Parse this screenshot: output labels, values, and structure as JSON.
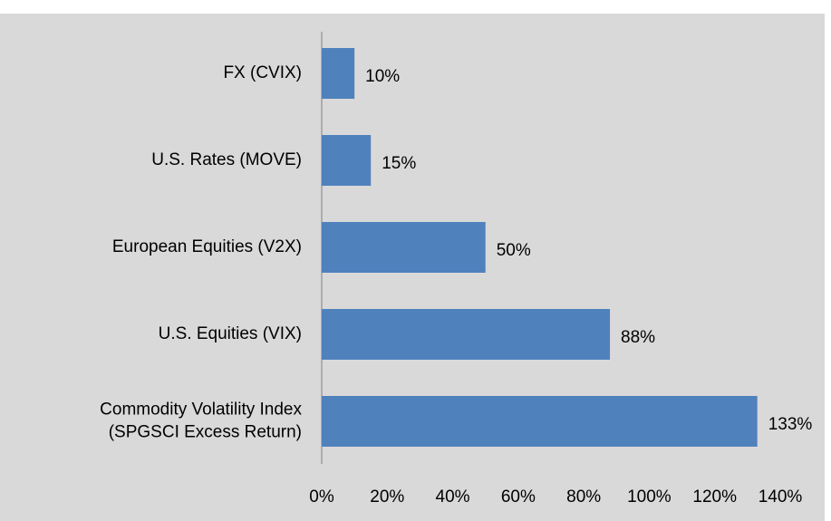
{
  "chart_data": {
    "type": "bar",
    "orientation": "horizontal",
    "categories": [
      "FX (CVIX)",
      "U.S. Rates (MOVE)",
      "European Equities (V2X)",
      "U.S. Equities (VIX)",
      [
        "Commodity Volatility Index",
        "(SPGSCI Excess Return)"
      ]
    ],
    "values": [
      10,
      15,
      50,
      88,
      133
    ],
    "value_labels": [
      "10%",
      "15%",
      "50%",
      "88%",
      "133%"
    ],
    "color": "#4f81bd",
    "xlim": [
      0,
      140
    ],
    "xticks": [
      {
        "value": 0,
        "label": "0%"
      },
      {
        "value": 20,
        "label": "20%"
      },
      {
        "value": 40,
        "label": "40%"
      },
      {
        "value": 60,
        "label": "60%"
      },
      {
        "value": 80,
        "label": "80%"
      },
      {
        "value": 100,
        "label": "100%"
      },
      {
        "value": 120,
        "label": "120%"
      },
      {
        "value": 140,
        "label": "140%"
      }
    ],
    "grid": false
  }
}
